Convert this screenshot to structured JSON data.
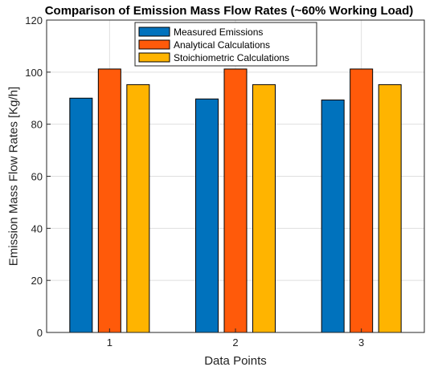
{
  "chart_data": {
    "type": "bar",
    "title": "Comparison of Emission Mass Flow Rates (~60% Working Load)",
    "xlabel": "Data Points",
    "ylabel": "Emission Mass Flow Rates [Kg/h]",
    "categories": [
      "1",
      "2",
      "3"
    ],
    "ylim": [
      0,
      120
    ],
    "yticks": [
      0,
      20,
      40,
      60,
      80,
      100,
      120
    ],
    "grid": true,
    "legend_position": "top-center",
    "series": [
      {
        "name": "Measured Emissions",
        "color": "#0072BD",
        "values": [
          90,
          89.7,
          89.3
        ]
      },
      {
        "name": "Analytical Calculations",
        "color": "#FF5A0A",
        "values": [
          101.2,
          101.2,
          101.2
        ]
      },
      {
        "name": "Stoichiometric Calculations",
        "color": "#FFB400",
        "values": [
          95.2,
          95.2,
          95.2
        ]
      }
    ]
  }
}
